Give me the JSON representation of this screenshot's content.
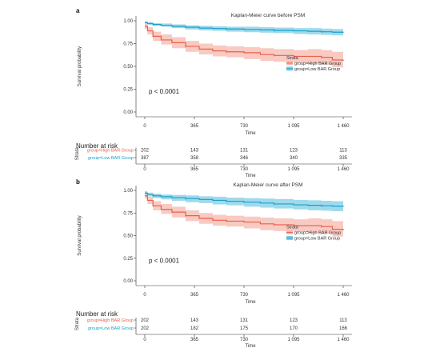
{
  "colors": {
    "high": "#e8604c",
    "high_band": "#f5b8ad",
    "low": "#1a9fc9",
    "low_band": "#7fcde6"
  },
  "chart_data": [
    {
      "panel": "a",
      "type": "line",
      "title": "Kaplan-Meier curve before PSM",
      "xlabel": "Time",
      "ylabel": "Survival probability",
      "xticks": [
        0,
        365,
        730,
        1095,
        1460
      ],
      "xtick_labels": [
        "0",
        "365",
        "730",
        "1 095",
        "1 460"
      ],
      "yticks": [
        0,
        0.25,
        0.5,
        0.75,
        1.0
      ],
      "ytick_labels": [
        "0.00",
        "0.25",
        "0.50",
        "0.75",
        "1.00"
      ],
      "xlim": [
        0,
        1460
      ],
      "ylim": [
        0,
        1
      ],
      "legend": {
        "title": "Strata",
        "placement": "right"
      },
      "pvalue": "p < 0.0001",
      "series": [
        {
          "name": "group=High BAR Group",
          "color": "#e8604c",
          "x": [
            0,
            20,
            60,
            120,
            200,
            300,
            400,
            500,
            600,
            730,
            850,
            950,
            1095,
            1200,
            1300,
            1380,
            1460
          ],
          "y": [
            0.94,
            0.89,
            0.83,
            0.79,
            0.76,
            0.72,
            0.69,
            0.67,
            0.66,
            0.65,
            0.63,
            0.62,
            0.61,
            0.61,
            0.6,
            0.57,
            0.56
          ],
          "lower": [
            0.91,
            0.85,
            0.78,
            0.74,
            0.7,
            0.66,
            0.63,
            0.61,
            0.6,
            0.58,
            0.56,
            0.55,
            0.54,
            0.53,
            0.52,
            0.49,
            0.48
          ],
          "upper": [
            0.97,
            0.93,
            0.88,
            0.85,
            0.82,
            0.78,
            0.75,
            0.73,
            0.72,
            0.71,
            0.7,
            0.69,
            0.68,
            0.69,
            0.68,
            0.66,
            0.66
          ]
        },
        {
          "name": "group=Low BAR Group",
          "color": "#1a9fc9",
          "x": [
            0,
            20,
            60,
            120,
            200,
            300,
            400,
            500,
            600,
            730,
            850,
            950,
            1095,
            1200,
            1300,
            1380,
            1460
          ],
          "y": [
            0.98,
            0.97,
            0.96,
            0.95,
            0.94,
            0.93,
            0.92,
            0.915,
            0.91,
            0.905,
            0.9,
            0.895,
            0.89,
            0.885,
            0.88,
            0.875,
            0.87
          ],
          "lower": [
            0.97,
            0.955,
            0.945,
            0.935,
            0.92,
            0.905,
            0.895,
            0.89,
            0.88,
            0.875,
            0.87,
            0.865,
            0.855,
            0.85,
            0.845,
            0.84,
            0.835
          ],
          "upper": [
            0.995,
            0.985,
            0.975,
            0.97,
            0.96,
            0.95,
            0.945,
            0.94,
            0.935,
            0.935,
            0.93,
            0.925,
            0.92,
            0.92,
            0.915,
            0.91,
            0.905
          ]
        }
      ],
      "risk_table": {
        "title": "Number at risk",
        "strata_label": "Strata",
        "xlabel": "Time",
        "times": [
          0,
          365,
          730,
          1095,
          1460
        ],
        "rows": [
          {
            "name": "group=High BAR Group",
            "values": [
              202,
              143,
              131,
              123,
              113
            ]
          },
          {
            "name": "group=Low BAR Group",
            "values": [
              387,
              358,
              346,
              340,
              335
            ]
          }
        ]
      }
    },
    {
      "panel": "b",
      "type": "line",
      "title": "Kaplan-Meier curve after PSM",
      "xlabel": "Time",
      "ylabel": "Survival probability",
      "xticks": [
        0,
        365,
        730,
        1095,
        1460
      ],
      "xtick_labels": [
        "0",
        "365",
        "730",
        "1 095",
        "1 460"
      ],
      "yticks": [
        0,
        0.25,
        0.5,
        0.75,
        1.0
      ],
      "ytick_labels": [
        "0.00",
        "0.25",
        "0.50",
        "0.75",
        "1.00"
      ],
      "xlim": [
        0,
        1460
      ],
      "ylim": [
        0,
        1
      ],
      "legend": {
        "title": "Strata",
        "placement": "right"
      },
      "pvalue": "p < 0.0001",
      "series": [
        {
          "name": "group=High BAR Group",
          "color": "#e8604c",
          "x": [
            0,
            20,
            60,
            120,
            200,
            300,
            400,
            500,
            600,
            730,
            850,
            950,
            1095,
            1200,
            1300,
            1380,
            1460
          ],
          "y": [
            0.94,
            0.89,
            0.83,
            0.79,
            0.76,
            0.72,
            0.69,
            0.67,
            0.66,
            0.65,
            0.63,
            0.62,
            0.61,
            0.61,
            0.6,
            0.57,
            0.56
          ],
          "lower": [
            0.91,
            0.85,
            0.78,
            0.74,
            0.7,
            0.66,
            0.63,
            0.61,
            0.6,
            0.58,
            0.56,
            0.55,
            0.54,
            0.53,
            0.52,
            0.49,
            0.48
          ],
          "upper": [
            0.97,
            0.93,
            0.88,
            0.85,
            0.82,
            0.78,
            0.75,
            0.73,
            0.72,
            0.71,
            0.7,
            0.69,
            0.68,
            0.69,
            0.68,
            0.66,
            0.66
          ]
        },
        {
          "name": "group=Low BAR Group",
          "color": "#1a9fc9",
          "x": [
            0,
            20,
            60,
            120,
            200,
            300,
            400,
            500,
            600,
            730,
            850,
            950,
            1095,
            1200,
            1300,
            1380,
            1460
          ],
          "y": [
            0.97,
            0.955,
            0.94,
            0.93,
            0.92,
            0.91,
            0.9,
            0.89,
            0.88,
            0.87,
            0.86,
            0.85,
            0.84,
            0.835,
            0.83,
            0.825,
            0.82
          ],
          "lower": [
            0.955,
            0.935,
            0.915,
            0.9,
            0.885,
            0.87,
            0.86,
            0.845,
            0.835,
            0.82,
            0.81,
            0.8,
            0.79,
            0.78,
            0.775,
            0.77,
            0.76
          ],
          "upper": [
            0.99,
            0.975,
            0.965,
            0.955,
            0.95,
            0.945,
            0.935,
            0.93,
            0.92,
            0.915,
            0.91,
            0.905,
            0.895,
            0.89,
            0.885,
            0.88,
            0.88
          ]
        }
      ],
      "risk_table": {
        "title": "Number at risk",
        "strata_label": "Strata",
        "xlabel": "Time",
        "times": [
          0,
          365,
          730,
          1095,
          1460
        ],
        "rows": [
          {
            "name": "group=High BAR Group",
            "values": [
              202,
              143,
              131,
              123,
              113
            ]
          },
          {
            "name": "group=Low BAR Group",
            "values": [
              202,
              182,
              175,
              170,
              166
            ]
          }
        ]
      }
    }
  ]
}
